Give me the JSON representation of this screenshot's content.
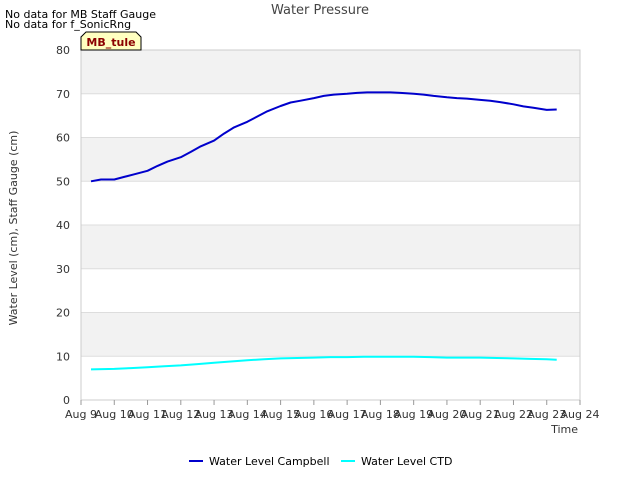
{
  "notes": [
    "No data for MB Staff Gauge",
    "No data for f_SonicRng"
  ],
  "site_badge": "MB_tule",
  "colors": {
    "band": "#f2f2f2",
    "grid": "#dddddd",
    "badge_fill": "#ffffc0",
    "campbell": "#0000cc",
    "ctd": "#00ffff"
  },
  "chart_data": {
    "type": "line",
    "title": "Water Pressure",
    "xlabel": "Time",
    "ylabel": "Water Level (cm), Staff Gauge (cm)",
    "xlim": [
      9,
      24
    ],
    "ylim": [
      0,
      80
    ],
    "xticks": [
      9,
      10,
      11,
      12,
      13,
      14,
      15,
      16,
      17,
      18,
      19,
      20,
      21,
      22,
      23,
      24
    ],
    "xtick_labels": [
      "Aug 9",
      "Aug 10",
      "Aug 11",
      "Aug 12",
      "Aug 13",
      "Aug 14",
      "Aug 15",
      "Aug 16",
      "Aug 17",
      "Aug 18",
      "Aug 19",
      "Aug 20",
      "Aug 21",
      "Aug 22",
      "Aug 23",
      "Aug 24"
    ],
    "yticks": [
      0,
      10,
      20,
      30,
      40,
      50,
      60,
      70,
      80
    ],
    "series": [
      {
        "name": "Water Level Campbell",
        "color": "#0000cc",
        "x": [
          9.3,
          9.6,
          10.0,
          10.3,
          10.6,
          11.0,
          11.3,
          11.6,
          12.0,
          12.3,
          12.6,
          13.0,
          13.3,
          13.6,
          14.0,
          14.3,
          14.6,
          15.0,
          15.3,
          15.6,
          16.0,
          16.3,
          16.6,
          17.0,
          17.3,
          17.6,
          18.0,
          18.3,
          18.6,
          19.0,
          19.3,
          19.6,
          20.0,
          20.3,
          20.6,
          21.0,
          21.3,
          21.6,
          22.0,
          22.3,
          22.6,
          23.0,
          23.3
        ],
        "y": [
          50.0,
          50.4,
          50.4,
          51.0,
          51.6,
          52.4,
          53.5,
          54.5,
          55.5,
          56.7,
          58.0,
          59.3,
          60.9,
          62.3,
          63.6,
          64.8,
          66.0,
          67.2,
          68.0,
          68.4,
          69.0,
          69.5,
          69.8,
          70.0,
          70.2,
          70.3,
          70.3,
          70.3,
          70.2,
          70.0,
          69.8,
          69.5,
          69.2,
          69.0,
          68.9,
          68.6,
          68.4,
          68.1,
          67.6,
          67.1,
          66.8,
          66.3,
          66.4
        ]
      },
      {
        "name": "Water Level CTD",
        "color": "#00ffff",
        "x": [
          9.3,
          10.0,
          10.5,
          11.0,
          11.5,
          12.0,
          12.5,
          13.0,
          13.5,
          14.0,
          14.5,
          15.0,
          15.5,
          16.0,
          16.5,
          17.0,
          17.5,
          18.0,
          18.5,
          19.0,
          19.5,
          20.0,
          20.5,
          21.0,
          21.5,
          22.0,
          22.5,
          23.0,
          23.3
        ],
        "y": [
          7.0,
          7.1,
          7.3,
          7.5,
          7.7,
          7.9,
          8.2,
          8.5,
          8.8,
          9.1,
          9.3,
          9.5,
          9.6,
          9.7,
          9.8,
          9.8,
          9.9,
          9.9,
          9.9,
          9.9,
          9.8,
          9.7,
          9.7,
          9.7,
          9.6,
          9.5,
          9.4,
          9.3,
          9.2
        ]
      }
    ]
  }
}
